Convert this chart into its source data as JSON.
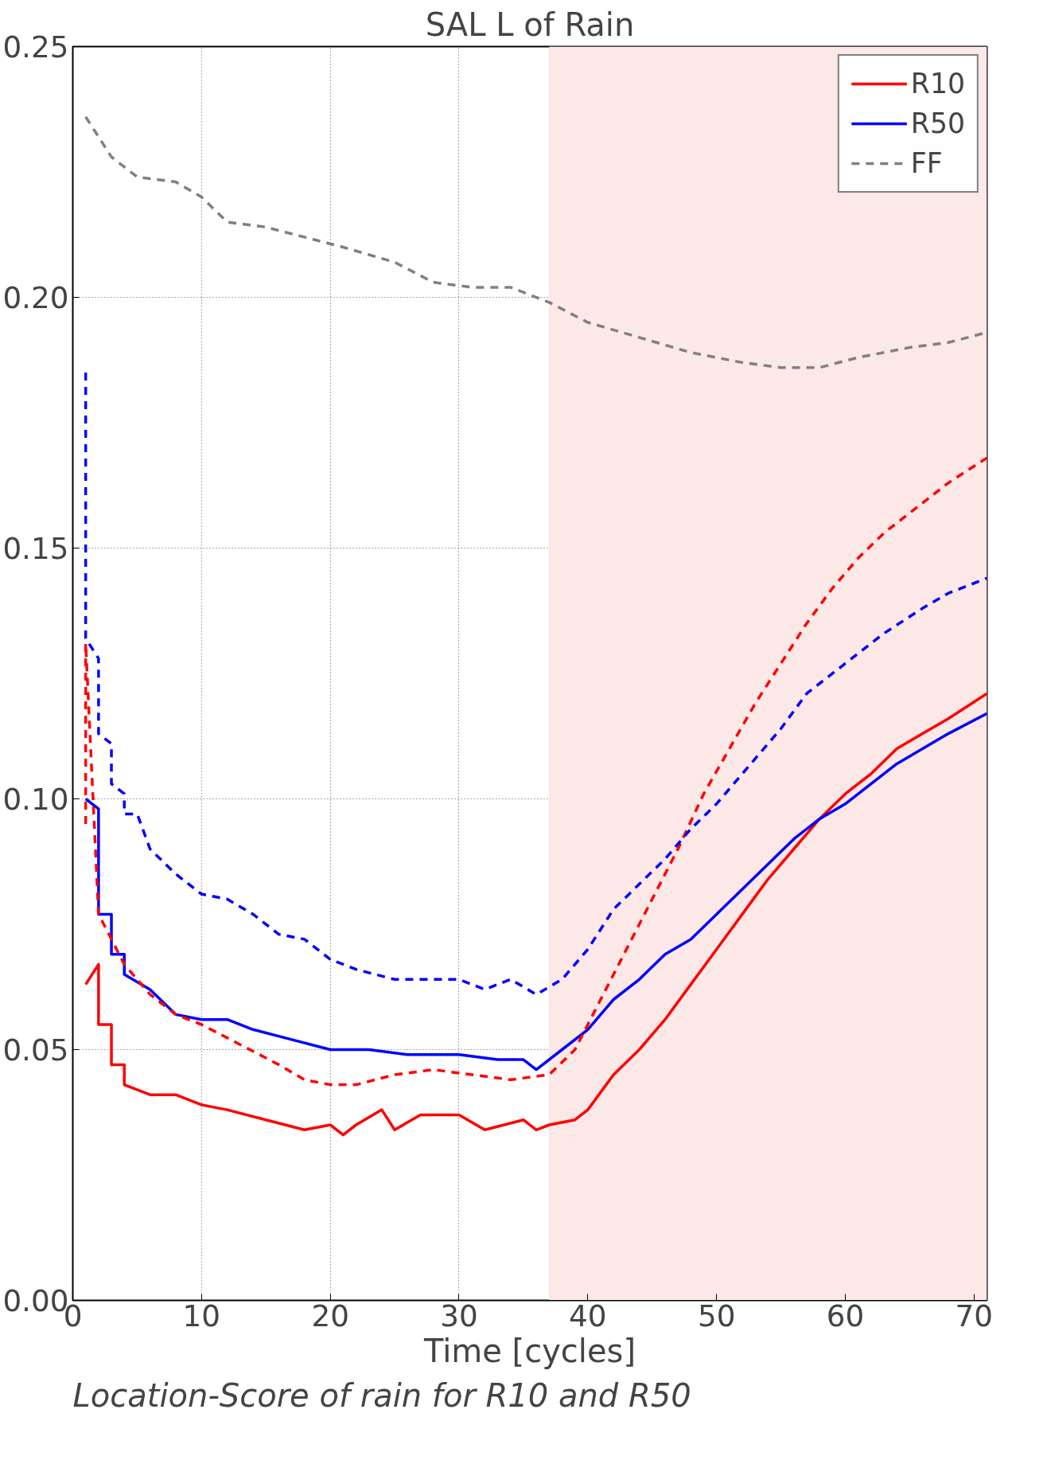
{
  "chart_data": {
    "type": "line",
    "title": "SAL L of Rain",
    "xlabel": "Time [cycles]",
    "annotations": [
      "Location-Score of rain for R10 and R50"
    ],
    "xlim": [
      0,
      71
    ],
    "ylim": [
      0,
      0.25
    ],
    "xticks": [
      0,
      10,
      20,
      30,
      40,
      50,
      60,
      70
    ],
    "yticks": [
      {
        "value": 0,
        "label": "0.00"
      },
      {
        "value": 0.05,
        "label": "0.05"
      },
      {
        "value": 0.1,
        "label": "0.10"
      },
      {
        "value": 0.15,
        "label": "0.15"
      },
      {
        "value": 0.2,
        "label": "0.20"
      },
      {
        "value": 0.25,
        "label": "0.25"
      }
    ],
    "grid": true,
    "legend": "top right",
    "marker": "none",
    "bands": [
      {
        "axis": "x",
        "from": 37,
        "to": 71,
        "color": "#fce8e6"
      }
    ],
    "series": [
      {
        "name": "R10",
        "color": "#ff0000",
        "line_style": "solid",
        "x": [
          1,
          2,
          2,
          3,
          3,
          4,
          4,
          6,
          8,
          10,
          12,
          15,
          18,
          20,
          21,
          22,
          24,
          25,
          27,
          30,
          32,
          35,
          36,
          37,
          39,
          40,
          42,
          44,
          46,
          48,
          50,
          52,
          54,
          56,
          58,
          60,
          62,
          64,
          66,
          68,
          71
        ],
        "values": [
          0.063,
          0.067,
          0.055,
          0.055,
          0.047,
          0.047,
          0.043,
          0.041,
          0.041,
          0.039,
          0.038,
          0.036,
          0.034,
          0.035,
          0.033,
          0.035,
          0.038,
          0.034,
          0.037,
          0.037,
          0.034,
          0.036,
          0.034,
          0.035,
          0.036,
          0.038,
          0.045,
          0.05,
          0.056,
          0.063,
          0.07,
          0.077,
          0.084,
          0.09,
          0.096,
          0.101,
          0.105,
          0.11,
          0.113,
          0.116,
          0.121
        ]
      },
      {
        "name": "R50",
        "color": "#0000ff",
        "line_style": "solid",
        "x": [
          1,
          2,
          2,
          3,
          3,
          4,
          4,
          6,
          8,
          10,
          12,
          14,
          17,
          20,
          23,
          26,
          30,
          33,
          35,
          36,
          38,
          40,
          42,
          44,
          46,
          48,
          50,
          52,
          54,
          56,
          58,
          60,
          62,
          64,
          66,
          68,
          71
        ],
        "values": [
          0.1,
          0.098,
          0.077,
          0.077,
          0.069,
          0.069,
          0.065,
          0.062,
          0.057,
          0.056,
          0.056,
          0.054,
          0.052,
          0.05,
          0.05,
          0.049,
          0.049,
          0.048,
          0.048,
          0.046,
          0.05,
          0.054,
          0.06,
          0.064,
          0.069,
          0.072,
          0.077,
          0.082,
          0.087,
          0.092,
          0.096,
          0.099,
          0.103,
          0.107,
          0.11,
          0.113,
          0.117
        ]
      },
      {
        "name": "FF",
        "color": "#808080",
        "line_style": "dashed",
        "x": [
          1,
          3,
          5,
          8,
          10,
          12,
          15,
          18,
          21,
          25,
          28,
          31,
          34,
          37,
          40,
          44,
          48,
          50,
          52,
          55,
          58,
          61,
          65,
          68,
          71
        ],
        "values": [
          0.236,
          0.228,
          0.224,
          0.223,
          0.22,
          0.215,
          0.214,
          0.212,
          0.21,
          0.207,
          0.203,
          0.202,
          0.202,
          0.199,
          0.195,
          0.192,
          0.189,
          0.188,
          0.187,
          0.186,
          0.186,
          0.188,
          0.19,
          0.191,
          0.193
        ]
      },
      {
        "color": "#ff0000",
        "line_style": "dashed",
        "x": [
          1,
          1,
          2,
          3,
          4,
          6,
          8,
          10,
          13,
          16,
          18,
          20,
          22,
          25,
          28,
          31,
          34,
          37,
          39,
          41,
          43,
          45,
          47,
          49,
          51,
          53,
          55,
          57,
          59,
          61,
          63,
          66,
          68,
          71
        ],
        "values": [
          0.095,
          0.131,
          0.077,
          0.072,
          0.067,
          0.061,
          0.057,
          0.055,
          0.051,
          0.047,
          0.044,
          0.043,
          0.043,
          0.045,
          0.046,
          0.045,
          0.044,
          0.045,
          0.05,
          0.06,
          0.07,
          0.08,
          0.09,
          0.101,
          0.11,
          0.119,
          0.127,
          0.135,
          0.142,
          0.148,
          0.153,
          0.159,
          0.163,
          0.168
        ]
      },
      {
        "color": "#0000ff",
        "line_style": "dashed",
        "x": [
          1,
          1,
          2,
          2,
          3,
          3,
          4,
          4,
          5,
          6,
          8,
          10,
          12,
          14,
          16,
          18,
          20,
          22,
          25,
          28,
          30,
          32,
          34,
          36,
          38,
          40,
          42,
          44,
          46,
          48,
          50,
          53,
          55,
          57,
          60,
          63,
          66,
          68,
          71
        ],
        "values": [
          0.185,
          0.132,
          0.128,
          0.113,
          0.111,
          0.103,
          0.101,
          0.097,
          0.097,
          0.09,
          0.085,
          0.081,
          0.08,
          0.077,
          0.073,
          0.072,
          0.068,
          0.066,
          0.064,
          0.064,
          0.064,
          0.062,
          0.064,
          0.061,
          0.064,
          0.07,
          0.078,
          0.083,
          0.088,
          0.094,
          0.099,
          0.108,
          0.114,
          0.121,
          0.127,
          0.133,
          0.138,
          0.141,
          0.144
        ]
      }
    ]
  }
}
